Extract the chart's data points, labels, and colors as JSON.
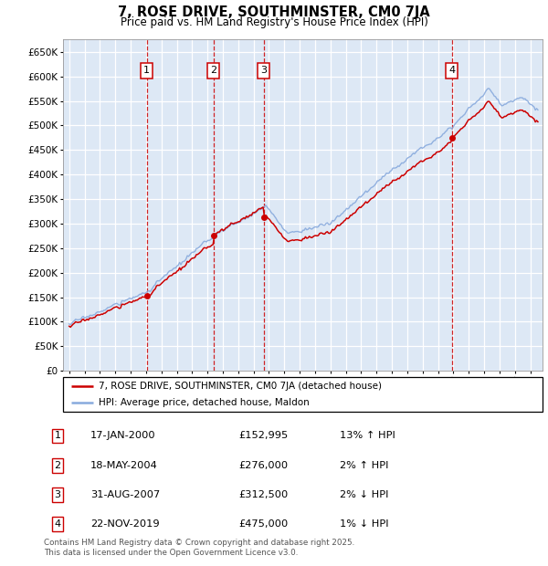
{
  "title": "7, ROSE DRIVE, SOUTHMINSTER, CM0 7JA",
  "subtitle": "Price paid vs. HM Land Registry's House Price Index (HPI)",
  "legend_line1": "7, ROSE DRIVE, SOUTHMINSTER, CM0 7JA (detached house)",
  "legend_line2": "HPI: Average price, detached house, Maldon",
  "footer1": "Contains HM Land Registry data © Crown copyright and database right 2025.",
  "footer2": "This data is licensed under the Open Government Licence v3.0.",
  "sale_color": "#cc0000",
  "hpi_color": "#88aadd",
  "plot_bg": "#dde8f5",
  "grid_color": "#ffffff",
  "ylim": [
    0,
    675000
  ],
  "ytick_values": [
    0,
    50000,
    100000,
    150000,
    200000,
    250000,
    300000,
    350000,
    400000,
    450000,
    500000,
    550000,
    600000,
    650000
  ],
  "annotations": [
    {
      "num": "1",
      "x_year": 2000.04,
      "y": 152995,
      "label": "17-JAN-2000",
      "price": "£152,995",
      "pct": "13% ↑ HPI"
    },
    {
      "num": "2",
      "x_year": 2004.38,
      "y": 276000,
      "label": "18-MAY-2004",
      "price": "£276,000",
      "pct": "2% ↑ HPI"
    },
    {
      "num": "3",
      "x_year": 2007.66,
      "y": 312500,
      "label": "31-AUG-2007",
      "price": "£312,500",
      "pct": "2% ↓ HPI"
    },
    {
      "num": "4",
      "x_year": 2019.9,
      "y": 475000,
      "label": "22-NOV-2019",
      "price": "£475,000",
      "pct": "1% ↓ HPI"
    }
  ],
  "xmin": 1994.6,
  "xmax": 2025.8,
  "xtick_start": 1995,
  "xtick_end": 2025,
  "noise_scale": 4000,
  "random_seed": 17
}
